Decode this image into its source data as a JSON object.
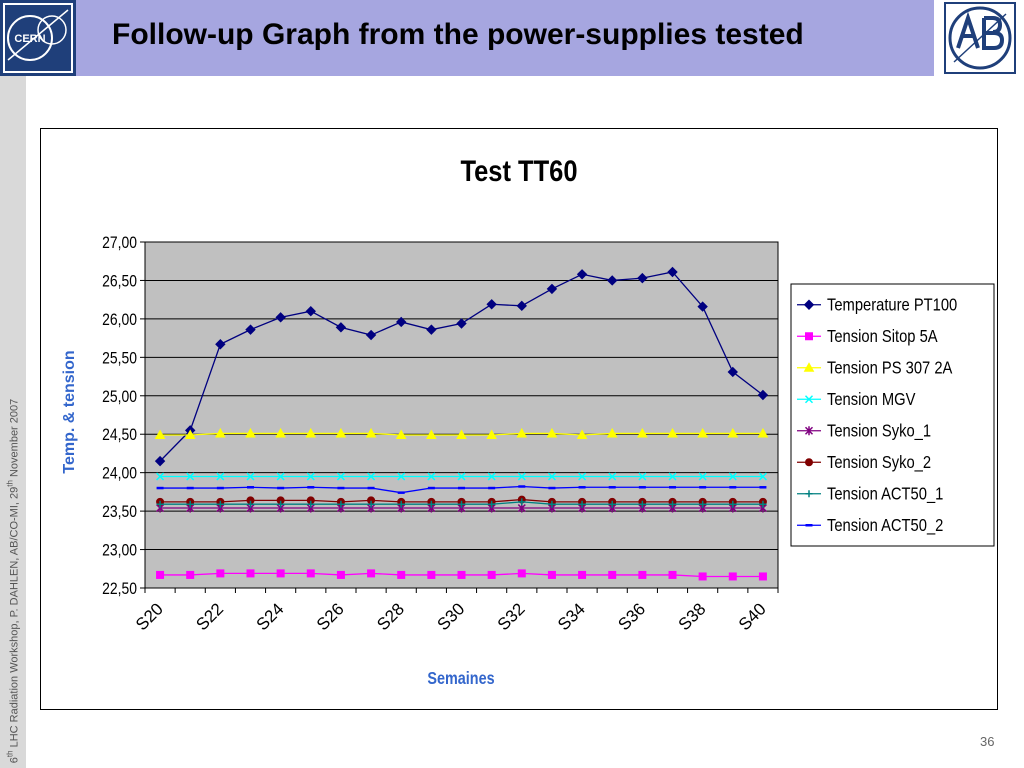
{
  "header": {
    "title": "Follow-up Graph from the power-supplies tested",
    "logo_left_text": "CERN"
  },
  "sidebar": {
    "prefix": "6",
    "sup1": "th",
    "mid": " LHC Radiation Workshop,  P. DAHLEN, AB/CO-MI,  29",
    "sup2": "th",
    "suffix": " November 2007"
  },
  "page_number": "36",
  "colors": {
    "header_bg": "#a6a6e0",
    "plot_bg": "#c0c0c0",
    "ylabel": "#3366cc"
  },
  "chart_data": {
    "type": "line",
    "title": "Test TT60",
    "xlabel": "Semaines",
    "ylabel": "Temp. & tension",
    "ylim": [
      22.5,
      27.0
    ],
    "yticks": [
      "22,50",
      "23,00",
      "23,50",
      "24,00",
      "24,50",
      "25,00",
      "25,50",
      "26,00",
      "26,50",
      "27,00"
    ],
    "x": [
      "S20",
      "S21",
      "S22",
      "S23",
      "S24",
      "S25",
      "S26",
      "S27",
      "S28",
      "S29",
      "S30",
      "S31",
      "S32",
      "S33",
      "S34",
      "S35",
      "S36",
      "S37",
      "S38",
      "S39",
      "S40"
    ],
    "xtick_labels": [
      "S20",
      "S22",
      "S24",
      "S26",
      "S28",
      "S30",
      "S32",
      "S34",
      "S36",
      "S38",
      "S40"
    ],
    "grid": true,
    "legend_position": "right",
    "series": [
      {
        "name": "Temperature PT100",
        "color": "#000080",
        "marker": "diamond",
        "values": [
          24.15,
          24.55,
          25.67,
          25.86,
          26.02,
          26.1,
          25.89,
          25.79,
          25.96,
          25.86,
          25.94,
          26.19,
          26.17,
          26.39,
          26.58,
          26.5,
          26.53,
          26.61,
          26.16,
          25.31,
          25.01
        ]
      },
      {
        "name": "Tension Sitop 5A",
        "color": "#ff00ff",
        "marker": "square",
        "values": [
          22.67,
          22.67,
          22.69,
          22.69,
          22.69,
          22.69,
          22.67,
          22.69,
          22.67,
          22.67,
          22.67,
          22.67,
          22.69,
          22.67,
          22.67,
          22.67,
          22.67,
          22.67,
          22.65,
          22.65,
          22.65
        ]
      },
      {
        "name": "Tension PS 307 2A",
        "color": "#ffff00",
        "marker": "triangle",
        "values": [
          24.49,
          24.49,
          24.51,
          24.51,
          24.51,
          24.51,
          24.51,
          24.51,
          24.49,
          24.49,
          24.49,
          24.49,
          24.51,
          24.51,
          24.49,
          24.51,
          24.51,
          24.51,
          24.51,
          24.51,
          24.51
        ]
      },
      {
        "name": "Tension MGV",
        "color": "#00ffff",
        "marker": "x",
        "values": [
          23.95,
          23.95,
          23.95,
          23.95,
          23.95,
          23.95,
          23.95,
          23.95,
          23.95,
          23.95,
          23.95,
          23.95,
          23.95,
          23.95,
          23.95,
          23.95,
          23.95,
          23.95,
          23.95,
          23.95,
          23.95
        ]
      },
      {
        "name": "Tension Syko_1",
        "color": "#800080",
        "marker": "star",
        "values": [
          23.54,
          23.54,
          23.54,
          23.54,
          23.54,
          23.54,
          23.54,
          23.54,
          23.54,
          23.54,
          23.54,
          23.54,
          23.54,
          23.54,
          23.54,
          23.54,
          23.54,
          23.54,
          23.54,
          23.54,
          23.54
        ]
      },
      {
        "name": "Tension Syko_2",
        "color": "#800000",
        "marker": "circle",
        "values": [
          23.62,
          23.62,
          23.62,
          23.64,
          23.64,
          23.64,
          23.62,
          23.64,
          23.62,
          23.62,
          23.62,
          23.62,
          23.65,
          23.62,
          23.62,
          23.62,
          23.62,
          23.62,
          23.62,
          23.62,
          23.62
        ]
      },
      {
        "name": "Tension ACT50_1",
        "color": "#008080",
        "marker": "plus",
        "values": [
          23.59,
          23.59,
          23.59,
          23.59,
          23.59,
          23.59,
          23.59,
          23.59,
          23.59,
          23.59,
          23.59,
          23.59,
          23.62,
          23.59,
          23.59,
          23.59,
          23.59,
          23.59,
          23.59,
          23.59,
          23.59
        ]
      },
      {
        "name": "Tension ACT50_2",
        "color": "#0000ff",
        "marker": "dash",
        "values": [
          23.8,
          23.8,
          23.8,
          23.81,
          23.8,
          23.81,
          23.8,
          23.8,
          23.74,
          23.8,
          23.8,
          23.8,
          23.82,
          23.8,
          23.81,
          23.81,
          23.81,
          23.81,
          23.81,
          23.81,
          23.81
        ]
      }
    ]
  }
}
